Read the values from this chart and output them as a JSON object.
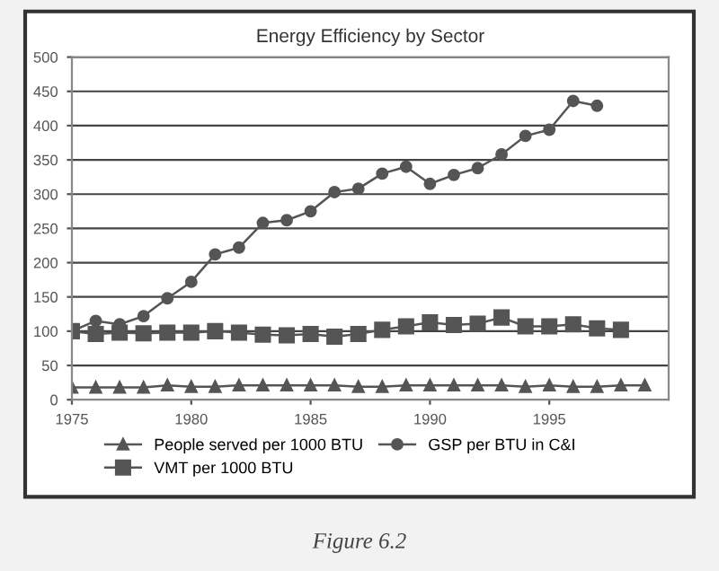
{
  "chart_data": {
    "type": "line",
    "title": "Energy Efficiency by Sector",
    "x": [
      1975,
      1976,
      1977,
      1978,
      1979,
      1980,
      1981,
      1982,
      1983,
      1984,
      1985,
      1986,
      1987,
      1988,
      1989,
      1990,
      1991,
      1992,
      1993,
      1994,
      1995,
      1996,
      1997,
      1998,
      1999
    ],
    "series": [
      {
        "name": "People served per 1000 BTU",
        "color": "#555555",
        "marker": "triangle",
        "values": [
          18,
          18,
          18,
          18,
          21,
          19,
          19,
          21,
          21,
          21,
          21,
          21,
          19,
          19,
          21,
          21,
          21,
          21,
          21,
          19,
          21,
          19,
          19,
          21,
          21
        ]
      },
      {
        "name": "VMT per 1000 BTU",
        "color": "#555555",
        "marker": "square",
        "values": [
          100,
          96,
          98,
          97,
          98,
          98,
          100,
          98,
          95,
          94,
          96,
          92,
          96,
          102,
          107,
          113,
          109,
          111,
          120,
          107,
          107,
          110,
          104,
          102,
          null
        ]
      },
      {
        "name": "GSP per BTU in C&I",
        "color": "#555555",
        "marker": "circle",
        "values": [
          100,
          115,
          110,
          122,
          148,
          172,
          212,
          222,
          258,
          262,
          275,
          303,
          308,
          330,
          340,
          315,
          328,
          338,
          358,
          385,
          394,
          436,
          429,
          null,
          null
        ]
      }
    ],
    "xlim": [
      1975,
      2000
    ],
    "xticks": [
      1975,
      1980,
      1985,
      1990,
      1995
    ],
    "ylim": [
      0,
      500
    ],
    "yticks": [
      0,
      50,
      100,
      150,
      200,
      250,
      300,
      350,
      400,
      450,
      500
    ],
    "grid": "y",
    "legend": "bottom",
    "annotations": [
      "Figure 6.2"
    ]
  }
}
